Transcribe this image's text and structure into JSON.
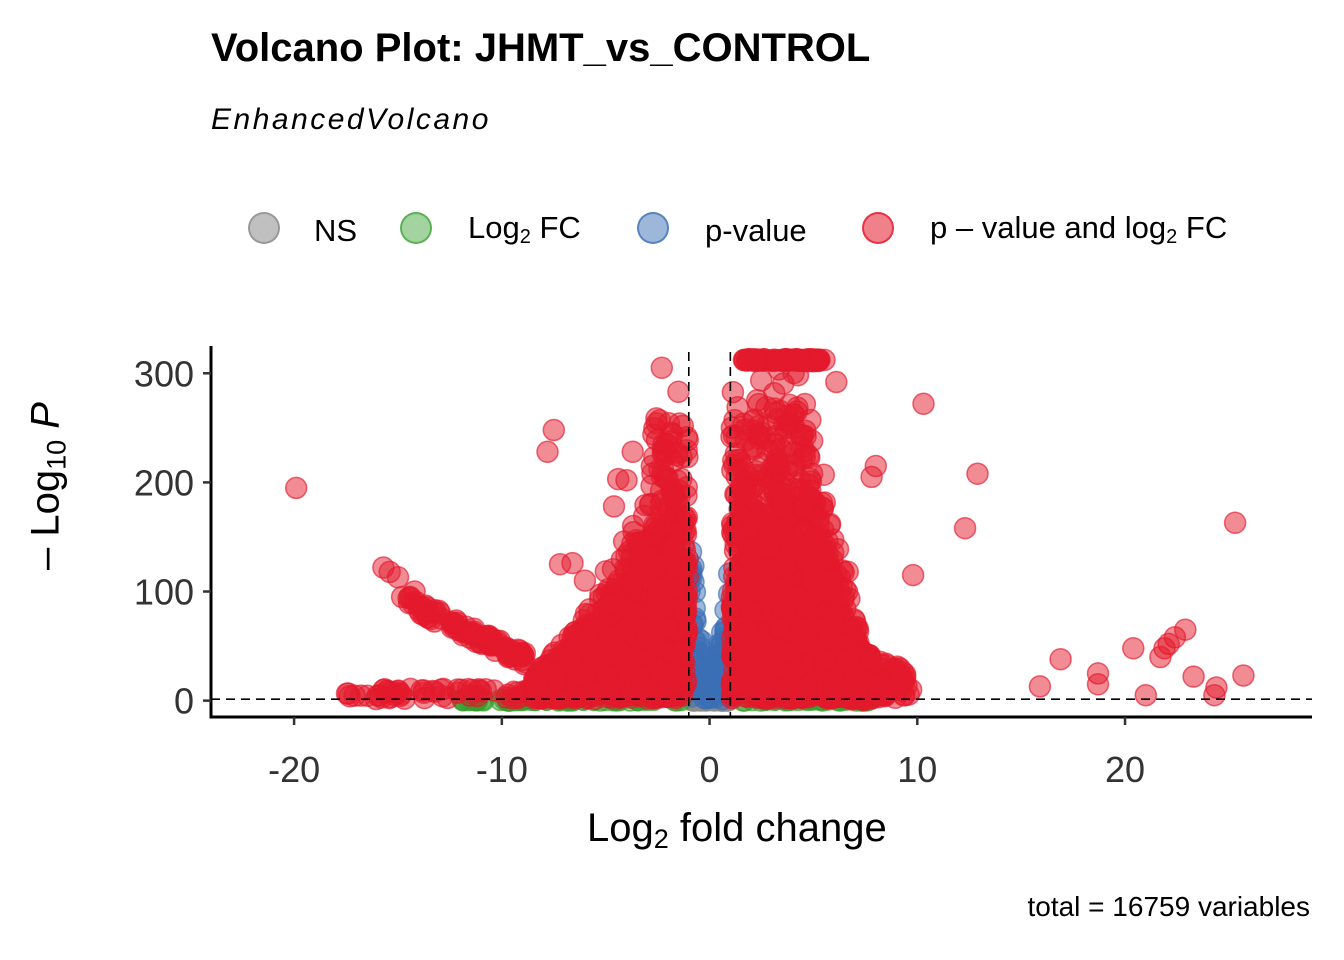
{
  "title": "Volcano Plot: JHMT_vs_CONTROL",
  "subtitle": "EnhancedVolcano",
  "caption": "total = 16759 variables",
  "legend": [
    {
      "id": "ns",
      "label": "NS",
      "color": "#8c8c8c"
    },
    {
      "id": "log2fc",
      "label": "Log",
      "sub": "2",
      "label_after": " FC",
      "color": "#33a02c"
    },
    {
      "id": "pvalue",
      "label": "p-value",
      "color": "#3b6fb6"
    },
    {
      "id": "both",
      "label": "p – value and log",
      "sub": "2",
      "label_after": " FC",
      "color": "#e4192c"
    }
  ],
  "axes": {
    "xlabel": "Log",
    "xlabel_sub": "2",
    "xlabel_after": " fold change",
    "ylabel_prefix": "– Log",
    "ylabel_sub": "10",
    "ylabel_var": "P"
  },
  "chart_data": {
    "type": "scatter",
    "title": "Volcano Plot: JHMT_vs_CONTROL",
    "xlabel": "Log2 fold change",
    "ylabel": "-Log10 P",
    "xlim": [
      -24,
      29
    ],
    "ylim": [
      -15,
      325
    ],
    "xticks": [
      -20,
      -10,
      0,
      10,
      20
    ],
    "yticks": [
      0,
      100,
      200,
      300
    ],
    "xtick_labels": [
      "-20",
      "-10",
      "0",
      "10",
      "20"
    ],
    "ytick_labels": [
      "0",
      "100",
      "200",
      "300"
    ],
    "fc_cutoff": 1,
    "p_cutoff_log10": 1.3,
    "total_variables": 16759,
    "outliers": [
      {
        "x": -19.9,
        "y": 195
      },
      {
        "x": -15.7,
        "y": 122
      },
      {
        "x": -15.4,
        "y": 118
      },
      {
        "x": -15.0,
        "y": 113
      },
      {
        "x": -14.8,
        "y": 95
      },
      {
        "x": -14.2,
        "y": 100
      },
      {
        "x": -7.8,
        "y": 228
      },
      {
        "x": -7.5,
        "y": 248
      },
      {
        "x": -7.2,
        "y": 125
      },
      {
        "x": -6.6,
        "y": 126
      },
      {
        "x": -6.0,
        "y": 110
      },
      {
        "x": -4.6,
        "y": 178
      },
      {
        "x": -4.4,
        "y": 203
      },
      {
        "x": -4.0,
        "y": 202
      },
      {
        "x": -3.7,
        "y": 228
      },
      {
        "x": -3.4,
        "y": 145
      },
      {
        "x": -2.4,
        "y": 257
      },
      {
        "x": -2.3,
        "y": 305
      },
      {
        "x": -1.5,
        "y": 283
      },
      {
        "x": 4.2,
        "y": 265
      },
      {
        "x": 4.5,
        "y": 243
      },
      {
        "x": 5.5,
        "y": 207
      },
      {
        "x": 5.8,
        "y": 162
      },
      {
        "x": 6.1,
        "y": 292
      },
      {
        "x": 7.8,
        "y": 205
      },
      {
        "x": 8.0,
        "y": 215
      },
      {
        "x": 9.8,
        "y": 115
      },
      {
        "x": 9.7,
        "y": 10
      },
      {
        "x": 10.3,
        "y": 272
      },
      {
        "x": 12.3,
        "y": 158
      },
      {
        "x": 12.9,
        "y": 208
      },
      {
        "x": 15.9,
        "y": 13
      },
      {
        "x": 16.9,
        "y": 38
      },
      {
        "x": 18.7,
        "y": 25
      },
      {
        "x": 18.7,
        "y": 15
      },
      {
        "x": 20.4,
        "y": 48
      },
      {
        "x": 21.0,
        "y": 5
      },
      {
        "x": 21.7,
        "y": 40
      },
      {
        "x": 21.9,
        "y": 48
      },
      {
        "x": 22.1,
        "y": 52
      },
      {
        "x": 22.4,
        "y": 58
      },
      {
        "x": 22.9,
        "y": 65
      },
      {
        "x": 23.3,
        "y": 22
      },
      {
        "x": 24.3,
        "y": 5
      },
      {
        "x": 24.4,
        "y": 12
      },
      {
        "x": 25.3,
        "y": 163
      },
      {
        "x": 25.7,
        "y": 23
      }
    ]
  }
}
